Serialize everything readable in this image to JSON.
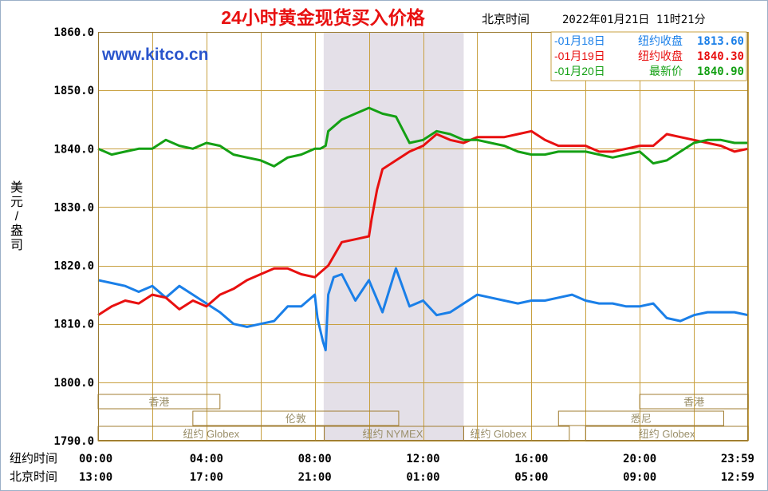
{
  "chart_data": {
    "type": "line",
    "title": "24小时黄金现货买入价格",
    "timestamp_label": "北京时间",
    "timestamp": "2022年01月21日 11时21分",
    "watermark": "www.kitco.cn",
    "ylabel": "美元/盎司",
    "ylim": [
      1790,
      1860
    ],
    "yticks": [
      "1860.0",
      "1850.0",
      "1840.0",
      "1830.0",
      "1820.0",
      "1810.0",
      "1800.0",
      "1790.0"
    ],
    "xlim": [
      0,
      24
    ],
    "xaxis_rows": [
      {
        "label": "纽约时间",
        "ticks": [
          "00:00",
          "04:00",
          "08:00",
          "12:00",
          "16:00",
          "20:00",
          "23:59"
        ]
      },
      {
        "label": "北京时间",
        "ticks": [
          "13:00",
          "17:00",
          "21:00",
          "01:00",
          "05:00",
          "09:00",
          "12:59"
        ]
      }
    ],
    "legend": [
      {
        "date": "-01月18日",
        "desc": "纽约收盘",
        "value": "1813.60",
        "color": "#1a7fe8"
      },
      {
        "date": "-01月19日",
        "desc": "纽约收盘",
        "value": "1840.30",
        "color": "#e81010"
      },
      {
        "date": "-01月20日",
        "desc": "最新价",
        "value": "1840.90",
        "color": "#14a014"
      }
    ],
    "nymex_shade": [
      8.33,
      13.5
    ],
    "market_sessions": [
      {
        "label": "香港",
        "start": 0,
        "end": 4.5
      },
      {
        "label": "伦敦",
        "start": 3.5,
        "end": 11.1
      },
      {
        "label": "纽约 Globex",
        "start": 0,
        "end": 8.35
      },
      {
        "label": "纽约 NYMEX",
        "start": 8.35,
        "end": 13.5
      },
      {
        "label": "纽约 Globex",
        "start": 13.5,
        "end": 17.4
      },
      {
        "label": "香港",
        "start": 20,
        "end": 24
      },
      {
        "label": "悉尼",
        "start": 17,
        "end": 23.1
      },
      {
        "label": "纽约 Globex",
        "start": 18,
        "end": 24
      }
    ],
    "series": [
      {
        "name": "01月18日",
        "color": "#1a7fe8",
        "x": [
          0,
          0.5,
          1,
          1.5,
          2,
          2.5,
          3,
          3.5,
          4,
          4.5,
          5,
          5.5,
          6,
          6.5,
          7,
          7.5,
          8,
          8.1,
          8.3,
          8.4,
          8.5,
          8.7,
          9,
          9.5,
          10,
          10.5,
          11,
          11.5,
          12,
          12.5,
          13,
          13.5,
          14,
          14.5,
          15,
          15.5,
          16,
          16.5,
          17,
          17.5,
          18,
          18.5,
          19,
          19.5,
          20,
          20.5,
          21,
          21.5,
          22,
          22.5,
          23,
          23.5,
          24
        ],
        "y": [
          1817.5,
          1817,
          1816.5,
          1815.5,
          1816.5,
          1814.5,
          1816.5,
          1815,
          1813.5,
          1812,
          1810,
          1809.5,
          1810,
          1810.5,
          1813,
          1813,
          1815,
          1811,
          1807,
          1805.5,
          1815,
          1818,
          1818.5,
          1814,
          1817.5,
          1812,
          1819.5,
          1813,
          1814,
          1811.5,
          1812,
          1813.5,
          1815,
          1814.5,
          1814,
          1813.5,
          1814,
          1814,
          1814.5,
          1815,
          1814,
          1813.5,
          1813.5,
          1813,
          1813,
          1813.5,
          1811,
          1810.5,
          1811.5,
          1812,
          1812,
          1812,
          1811.5
        ]
      },
      {
        "name": "01月19日",
        "color": "#e81010",
        "x": [
          0,
          0.5,
          1,
          1.5,
          2,
          2.5,
          3,
          3.5,
          4,
          4.5,
          5,
          5.5,
          6,
          6.5,
          7,
          7.5,
          8,
          8.5,
          9,
          9.5,
          10,
          10.1,
          10.3,
          10.5,
          11,
          11.5,
          12,
          12.5,
          13,
          13.5,
          14,
          14.5,
          15,
          15.5,
          16,
          16.5,
          17,
          17.5,
          18,
          18.5,
          19,
          19.5,
          20,
          20.5,
          21,
          21.5,
          22,
          22.5,
          23,
          23.5,
          24
        ],
        "y": [
          1811.5,
          1813,
          1814,
          1813.5,
          1815,
          1814.5,
          1812.5,
          1814,
          1813,
          1815,
          1816,
          1817.5,
          1818.5,
          1819.5,
          1819.5,
          1818.5,
          1818,
          1820,
          1824,
          1824.5,
          1825,
          1828,
          1833,
          1836.5,
          1838,
          1839.5,
          1840.5,
          1842.5,
          1841.5,
          1841,
          1842,
          1842,
          1842,
          1842.5,
          1843,
          1841.5,
          1840.5,
          1840.5,
          1840.5,
          1839.5,
          1839.5,
          1840,
          1840.5,
          1840.5,
          1842.5,
          1842,
          1841.5,
          1841,
          1840.5,
          1839.5,
          1840
        ]
      },
      {
        "name": "01月20日",
        "color": "#14a014",
        "x": [
          0,
          0.5,
          1,
          1.5,
          2,
          2.5,
          3,
          3.5,
          4,
          4.5,
          5,
          5.5,
          6,
          6.5,
          7,
          7.5,
          8,
          8.2,
          8.4,
          8.5,
          9,
          9.5,
          10,
          10.5,
          11,
          11.5,
          12,
          12.5,
          13,
          13.5,
          14,
          14.5,
          15,
          15.5,
          16,
          16.5,
          17,
          17.5,
          18,
          18.5,
          19,
          19.5,
          20,
          20.5,
          21,
          21.5,
          22,
          22.5,
          23,
          23.5,
          24
        ],
        "y": [
          1840,
          1839,
          1839.5,
          1840,
          1840,
          1841.5,
          1840.5,
          1840,
          1841,
          1840.5,
          1839,
          1838.5,
          1838,
          1837,
          1838.5,
          1839,
          1840,
          1840,
          1840.5,
          1843,
          1845,
          1846,
          1847,
          1846,
          1845.5,
          1841,
          1841.5,
          1843,
          1842.5,
          1841.5,
          1841.5,
          1841,
          1840.5,
          1839.5,
          1839,
          1839,
          1839.5,
          1839.5,
          1839.5,
          1839,
          1838.5,
          1839,
          1839.5,
          1837.5,
          1838,
          1839.5,
          1841,
          1841.5,
          1841.5,
          1841,
          1841
        ]
      }
    ]
  }
}
